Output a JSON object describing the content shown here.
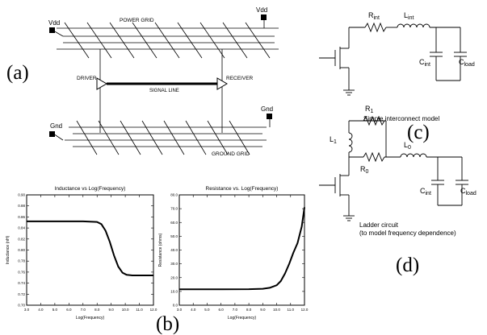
{
  "panel_labels": {
    "a": "(a)",
    "b": "(b)",
    "c": "(c)",
    "d": "(d)"
  },
  "grid_diagram": {
    "vdd_left": "Vdd",
    "vdd_right": "Vdd",
    "power_grid": "POWER GRID",
    "driver": "DRIVER",
    "receiver": "RECEIVER",
    "signal_line": "SIGNAL LINE",
    "gnd_left": "Gnd",
    "gnd_right": "Gnd",
    "ground_grid": "GROUND GRID"
  },
  "simple_model": {
    "r_base": "R",
    "r_sub": "int",
    "l_base": "L",
    "l_sub": "int",
    "c1_base": "C",
    "c1_sub": "int",
    "c2_base": "C",
    "c2_sub": "load",
    "caption": "Simple interconnect model"
  },
  "ladder_model": {
    "r1_base": "R",
    "r1_sub": "1",
    "l1_base": "L",
    "l1_sub": "1",
    "r0_base": "R",
    "r0_sub": "0",
    "l0_base": "L",
    "l0_sub": "0",
    "c1_base": "C",
    "c1_sub": "int",
    "c2_base": "C",
    "c2_sub": "load",
    "caption_line1": "Ladder circuit",
    "caption_line2": "(to model frequency dependence)"
  },
  "chart_data": [
    {
      "type": "line",
      "title": "Inductance vs Log(Frequency)",
      "xlabel": "Log(Frequency)",
      "ylabel": "Inductance (nH)",
      "xlim": [
        3.0,
        12.0
      ],
      "ylim": [
        0.7,
        0.9
      ],
      "xticks": [
        "3.0",
        "4.0",
        "5.0",
        "6.0",
        "7.0",
        "8.0",
        "9.0",
        "10.0",
        "11.0",
        "12.0"
      ],
      "yticks": [
        "0.70",
        "0.72",
        "0.74",
        "0.76",
        "0.78",
        "0.80",
        "0.82",
        "0.84",
        "0.86",
        "0.88",
        "0.90"
      ],
      "x": [
        3.0,
        5.0,
        7.0,
        8.0,
        8.3,
        8.6,
        8.9,
        9.2,
        9.5,
        9.8,
        10.1,
        10.5,
        11.0,
        12.0
      ],
      "y": [
        0.852,
        0.852,
        0.852,
        0.851,
        0.847,
        0.835,
        0.815,
        0.79,
        0.77,
        0.759,
        0.755,
        0.754,
        0.754,
        0.754
      ]
    },
    {
      "type": "line",
      "title": "Resistance vs. Log(Frequency)",
      "xlabel": "Log(Frequency)",
      "ylabel": "Resistance (ohms)",
      "xlim": [
        3.0,
        12.0
      ],
      "ylim": [
        0.0,
        80.0
      ],
      "xticks": [
        "3.0",
        "4.0",
        "5.0",
        "6.0",
        "7.0",
        "8.0",
        "9.0",
        "10.0",
        "11.0",
        "12.0"
      ],
      "yticks": [
        "0.0",
        "10.0",
        "20.0",
        "30.0",
        "40.0",
        "50.0",
        "60.0",
        "70.0",
        "80.0"
      ],
      "x": [
        3.0,
        6.0,
        8.0,
        9.0,
        9.5,
        10.0,
        10.3,
        10.6,
        10.9,
        11.2,
        11.5,
        11.8,
        12.0
      ],
      "y": [
        11.5,
        11.5,
        11.6,
        11.9,
        12.6,
        14.5,
        17.5,
        23.0,
        30.0,
        38.0,
        45.0,
        57.0,
        71.0
      ]
    }
  ]
}
